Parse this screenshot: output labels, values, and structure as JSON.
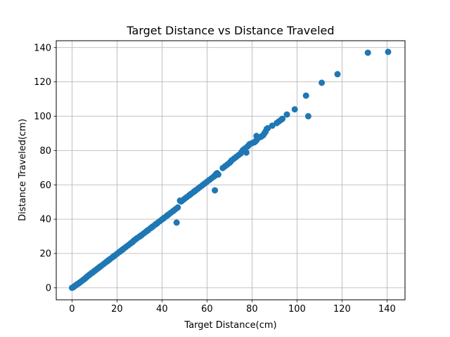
{
  "chart_data": {
    "type": "scatter",
    "title": "Target Distance vs Distance Traveled",
    "xlabel": "Target Distance(cm)",
    "ylabel": "Distance Traveled(cm)",
    "xlim": [
      -7,
      148
    ],
    "ylim": [
      -7,
      144
    ],
    "xticks": [
      0,
      20,
      40,
      60,
      80,
      100,
      120,
      140
    ],
    "yticks": [
      0,
      20,
      40,
      60,
      80,
      100,
      120,
      140
    ],
    "grid": true,
    "marker_color": "#1f77b4",
    "points": [
      [
        0,
        0
      ],
      [
        0.5,
        0.3
      ],
      [
        1,
        0.8
      ],
      [
        1.5,
        1.3
      ],
      [
        2,
        1.8
      ],
      [
        2.5,
        2.2
      ],
      [
        3,
        2.6
      ],
      [
        3.5,
        3.1
      ],
      [
        4,
        3.6
      ],
      [
        4.5,
        4.1
      ],
      [
        5,
        4.6
      ],
      [
        5.5,
        5.1
      ],
      [
        6,
        5.6
      ],
      [
        6.5,
        6.2
      ],
      [
        7,
        6.8
      ],
      [
        7.5,
        7.3
      ],
      [
        8,
        7.8
      ],
      [
        8.5,
        8.3
      ],
      [
        9,
        8.8
      ],
      [
        9.5,
        9.3
      ],
      [
        10,
        9.8
      ],
      [
        10.5,
        10.3
      ],
      [
        11,
        10.8
      ],
      [
        11.5,
        11.3
      ],
      [
        12,
        11.8
      ],
      [
        12.5,
        12.3
      ],
      [
        13,
        12.8
      ],
      [
        14,
        13.8
      ],
      [
        15,
        14.8
      ],
      [
        15.5,
        15.3
      ],
      [
        16,
        15.8
      ],
      [
        16.5,
        16.3
      ],
      [
        17,
        16.8
      ],
      [
        18,
        17.8
      ],
      [
        18.5,
        18.3
      ],
      [
        19,
        18.8
      ],
      [
        20,
        19.8
      ],
      [
        21,
        20.8
      ],
      [
        21.5,
        21.3
      ],
      [
        22,
        21.8
      ],
      [
        22.5,
        22.3
      ],
      [
        23,
        22.8
      ],
      [
        24,
        23.8
      ],
      [
        25,
        24.8
      ],
      [
        26,
        25.8
      ],
      [
        26.5,
        26.3
      ],
      [
        27,
        26.8
      ],
      [
        27.5,
        27.5
      ],
      [
        28,
        28
      ],
      [
        28.5,
        28.5
      ],
      [
        29,
        29
      ],
      [
        30,
        29.8
      ],
      [
        30.5,
        30.3
      ],
      [
        31,
        30.8
      ],
      [
        32,
        31.8
      ],
      [
        33,
        32.8
      ],
      [
        33.5,
        33.3
      ],
      [
        34,
        33.8
      ],
      [
        35,
        34.8
      ],
      [
        35.5,
        35.3
      ],
      [
        36,
        35.8
      ],
      [
        37,
        36.8
      ],
      [
        37.5,
        37.3
      ],
      [
        38,
        37.8
      ],
      [
        39,
        38.8
      ],
      [
        40,
        39.8
      ],
      [
        40.5,
        40.3
      ],
      [
        41,
        40.8
      ],
      [
        42,
        41.8
      ],
      [
        42.5,
        42.3
      ],
      [
        43,
        42.8
      ],
      [
        44,
        43.8
      ],
      [
        45,
        44.8
      ],
      [
        46,
        45.8
      ],
      [
        47,
        46.8
      ],
      [
        46.5,
        38
      ],
      [
        48,
        50.8
      ],
      [
        48.5,
        50.3
      ],
      [
        49,
        50.8
      ],
      [
        50,
        51.8
      ],
      [
        51,
        52.8
      ],
      [
        52,
        53.8
      ],
      [
        52.5,
        54.3
      ],
      [
        53,
        54.8
      ],
      [
        54,
        55.8
      ],
      [
        54.5,
        56.3
      ],
      [
        55,
        56.8
      ],
      [
        56,
        57.8
      ],
      [
        57,
        58.8
      ],
      [
        58,
        59.8
      ],
      [
        59,
        60.8
      ],
      [
        60,
        61.8
      ],
      [
        61,
        62.8
      ],
      [
        62,
        63.8
      ],
      [
        63,
        64.8
      ],
      [
        63.5,
        65.3
      ],
      [
        64,
        66.3
      ],
      [
        64.5,
        66.8
      ],
      [
        63.5,
        56.8
      ],
      [
        65,
        66
      ],
      [
        67,
        69.8
      ],
      [
        68,
        70.8
      ],
      [
        69,
        71.8
      ],
      [
        70,
        72.8
      ],
      [
        70.5,
        73.5
      ],
      [
        71,
        74.3
      ],
      [
        72,
        75.3
      ],
      [
        73,
        76.3
      ],
      [
        74,
        77.3
      ],
      [
        75,
        78.3
      ],
      [
        75.5,
        79.3
      ],
      [
        76,
        80.3
      ],
      [
        77,
        81.3
      ],
      [
        78,
        82.3
      ],
      [
        78.5,
        83
      ],
      [
        77.5,
        78.8
      ],
      [
        79,
        83.8
      ],
      [
        80,
        84.3
      ],
      [
        81,
        84.8
      ],
      [
        81.5,
        85.3
      ],
      [
        82,
        86
      ],
      [
        82,
        88.5
      ],
      [
        82.5,
        87
      ],
      [
        83,
        87.5
      ],
      [
        84,
        88
      ],
      [
        84.5,
        88.5
      ],
      [
        85,
        89
      ],
      [
        85.5,
        90
      ],
      [
        86,
        91
      ],
      [
        86.5,
        92.5
      ],
      [
        87,
        93
      ],
      [
        89,
        94.5
      ],
      [
        91,
        96
      ],
      [
        92,
        97
      ],
      [
        93,
        98
      ],
      [
        93.5,
        98.5
      ],
      [
        95.5,
        101
      ],
      [
        99,
        104
      ],
      [
        104,
        112
      ],
      [
        105,
        100
      ],
      [
        111,
        119.5
      ],
      [
        118,
        124.5
      ],
      [
        131.5,
        137
      ],
      [
        140.5,
        137.5
      ]
    ]
  }
}
